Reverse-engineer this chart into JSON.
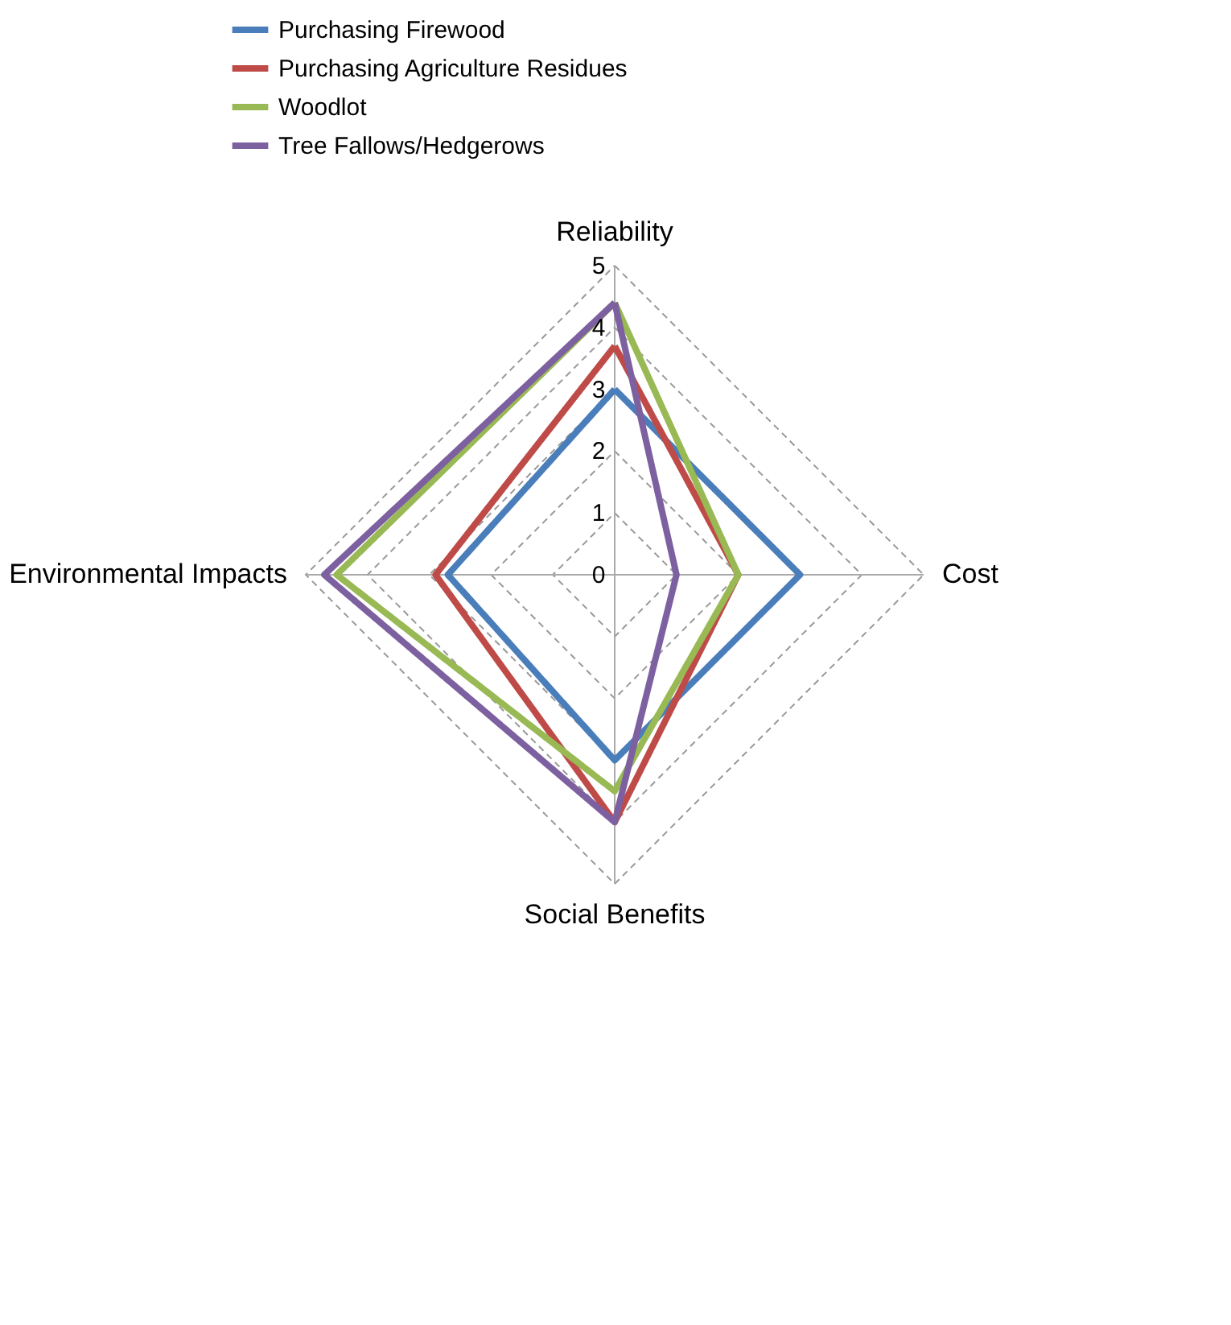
{
  "chart_data": {
    "type": "radar",
    "categories": [
      "Reliability",
      "Cost",
      "Social Benefits",
      "Environmental Impacts"
    ],
    "series": [
      {
        "name": "Purchasing Firewood",
        "color": "#4a7ebb",
        "values": [
          3,
          3,
          3,
          2.7
        ]
      },
      {
        "name": "Purchasing Agriculture Residues",
        "color": "#be4b48",
        "values": [
          3.7,
          2,
          4,
          2.9
        ]
      },
      {
        "name": "Woodlot",
        "color": "#98b954",
        "values": [
          4.4,
          2,
          3.5,
          4.5
        ]
      },
      {
        "name": "Tree Fallows/Hedgerows",
        "color": "#7d60a0",
        "values": [
          4.4,
          1,
          4,
          4.7
        ]
      }
    ],
    "ylim": [
      0,
      5
    ],
    "yticks": [
      0,
      1,
      2,
      3,
      4,
      5
    ],
    "grid": true,
    "legend": "top",
    "line_style": "solid"
  }
}
